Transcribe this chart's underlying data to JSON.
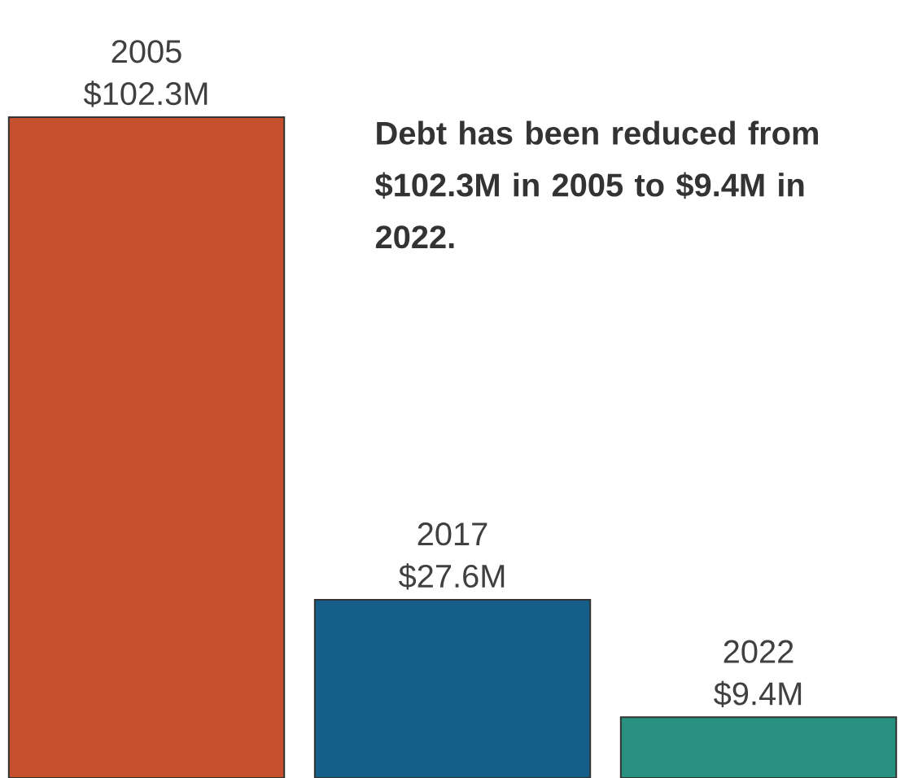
{
  "chart_data": {
    "type": "bar",
    "categories": [
      "2005",
      "2017",
      "2022"
    ],
    "values": [
      102.3,
      27.6,
      9.4
    ],
    "colors": [
      "#c4502d",
      "#155e8a",
      "#27907e"
    ],
    "value_labels": [
      "$102.3M",
      "$27.6M",
      "$9.4M"
    ],
    "annotations": [
      "Debt has been reduced from $102.3M in 2005 to $9.4M in 2022."
    ]
  }
}
